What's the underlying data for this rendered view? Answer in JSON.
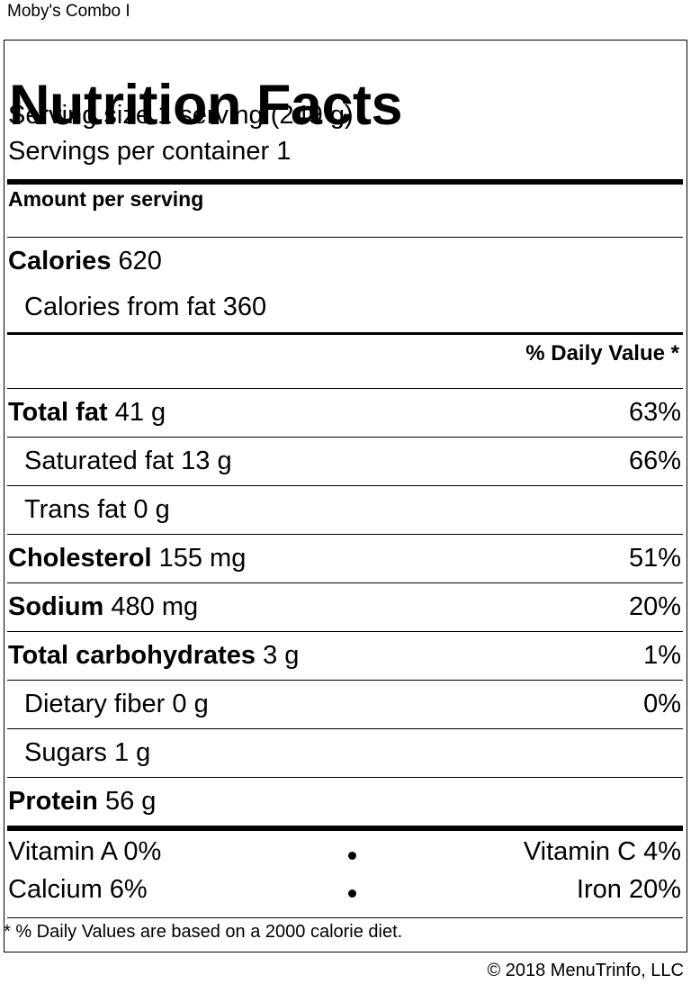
{
  "item_name": "Moby's Combo I",
  "label": {
    "title": "Nutrition Facts",
    "serving_size": "Serving size 1 serving (249 g)",
    "servings_per_container": "Servings per container 1",
    "amount_per_serving": "Amount per serving",
    "calories": {
      "label": "Calories",
      "value": "620"
    },
    "calories_from_fat": {
      "label": "Calories from fat",
      "value": "360"
    },
    "daily_value_header": "% Daily Value *",
    "nutrients": [
      {
        "name": "Total fat",
        "amount": "41 g",
        "dv": "63%"
      },
      {
        "name": "Saturated fat",
        "amount": "13 g",
        "dv": "66%"
      },
      {
        "name": "Trans fat",
        "amount": "0 g",
        "dv": ""
      },
      {
        "name": "Cholesterol",
        "amount": "155 mg",
        "dv": "51%"
      },
      {
        "name": "Sodium",
        "amount": "480 mg",
        "dv": "20%"
      },
      {
        "name": "Total carbohydrates",
        "amount": "3 g",
        "dv": "1%"
      },
      {
        "name": "Dietary fiber",
        "amount": "0 g",
        "dv": "0%"
      },
      {
        "name": "Sugars",
        "amount": "1 g",
        "dv": ""
      },
      {
        "name": "Protein",
        "amount": "56 g",
        "dv": ""
      }
    ],
    "vitamins": [
      {
        "left": "Vitamin A 0%",
        "right": "Vitamin C 4%"
      },
      {
        "left": "Calcium 6%",
        "right": "Iron 20%"
      }
    ],
    "footnote": "* % Daily Values are based on a 2000 calorie diet."
  },
  "copyright": "© 2018 MenuTrinfo, LLC"
}
